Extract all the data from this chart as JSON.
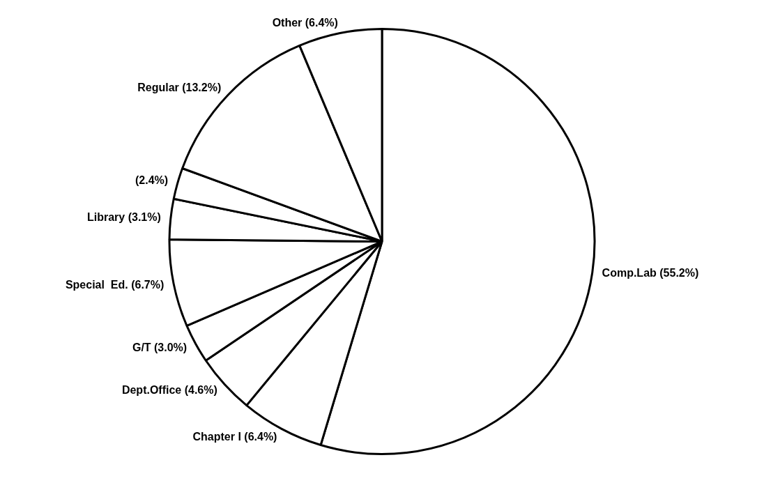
{
  "chart_data": {
    "type": "pie",
    "categories": [
      "Comp.Lab",
      "Chapter I",
      "Dept.Office",
      "G/T",
      "Special  Ed.",
      "Library",
      null,
      "Regular",
      "Other"
    ],
    "values": [
      55.2,
      6.4,
      4.6,
      3.0,
      6.7,
      3.1,
      2.4,
      13.2,
      6.4
    ],
    "value_labels": [
      "(55.2%)",
      "(6.4%)",
      "(4.6%)",
      "(3.0%)",
      "(6.7%)",
      "(3.1%)",
      "(2.4%)",
      "(13.2%)",
      "(6.4%)"
    ],
    "colors": [
      "#ffffff",
      "#ffffff",
      "#ffffff",
      "#ffffff",
      "#ffffff",
      "#ffffff",
      "#ffffff",
      "#ffffff",
      "#ffffff"
    ],
    "legend": false
  }
}
